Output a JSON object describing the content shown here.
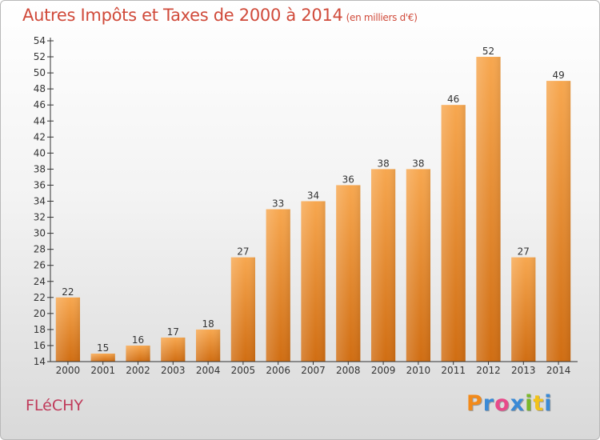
{
  "chart_data": {
    "type": "bar",
    "title": "Autres Impôts et Taxes de 2000 à 2014",
    "unit": "(en milliers d'€)",
    "categories": [
      "2000",
      "2001",
      "2002",
      "2003",
      "2004",
      "2005",
      "2006",
      "2007",
      "2008",
      "2009",
      "2010",
      "2011",
      "2012",
      "2013",
      "2014"
    ],
    "values": [
      22,
      15,
      16,
      17,
      18,
      27,
      33,
      34,
      36,
      38,
      38,
      46,
      52,
      27,
      49
    ],
    "ylim": [
      14,
      54
    ],
    "ytick_step": 2,
    "grid": false,
    "colors": {
      "bar_top": "#f7a74f",
      "bar_bottom": "#d06d12",
      "axis": "#333333"
    }
  },
  "footer": {
    "town": "FLéCHY",
    "logo_letters": [
      "P",
      "r",
      "o",
      "x",
      "i",
      "t",
      "i"
    ],
    "logo_colors": [
      "#f28a1a",
      "#3a8ad6",
      "#e84a8a",
      "#3a8ad6",
      "#7ab82a",
      "#f2c21a",
      "#3a8ad6"
    ]
  }
}
